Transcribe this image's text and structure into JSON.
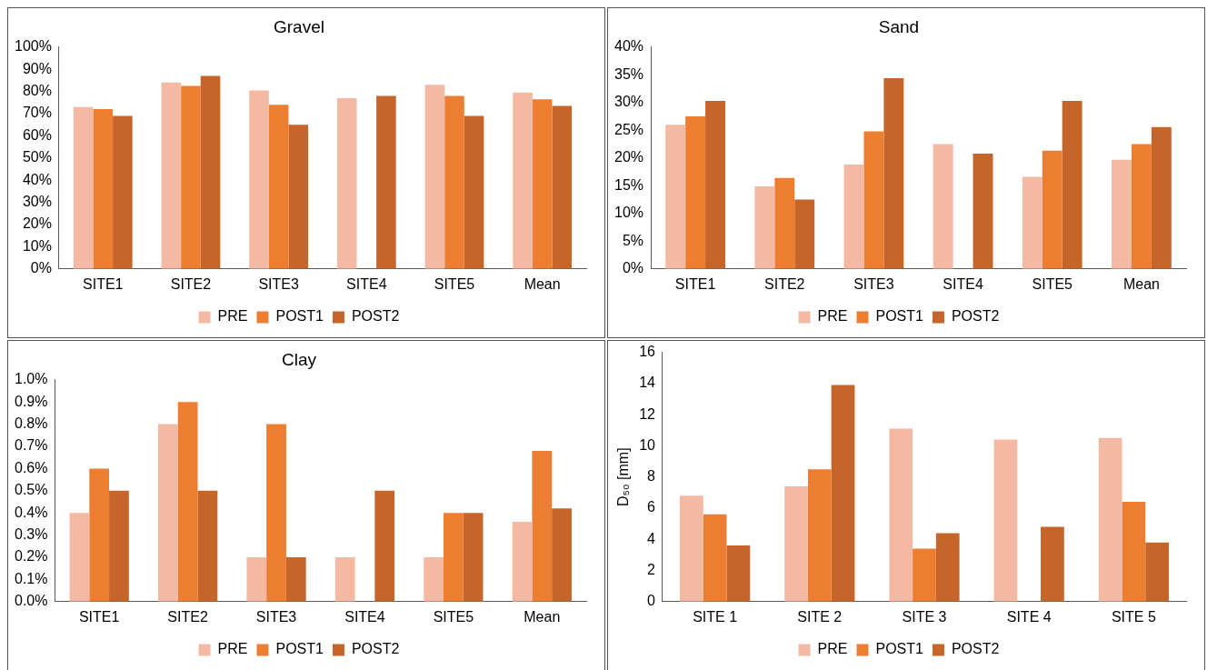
{
  "chart_data": [
    {
      "type": "bar",
      "title": "Gravel",
      "categories": [
        "SITE1",
        "SITE2",
        "SITE3",
        "SITE4",
        "SITE5",
        "Mean"
      ],
      "series": [
        {
          "name": "PRE",
          "color": "#f4b9a3",
          "values": [
            73,
            84,
            80.5,
            77,
            83,
            79.5
          ]
        },
        {
          "name": "POST1",
          "color": "#ed7d31",
          "values": [
            72,
            82.5,
            74,
            null,
            78,
            76.5
          ]
        },
        {
          "name": "POST2",
          "color": "#c5652a",
          "values": [
            69,
            87,
            65,
            78,
            69,
            73.5
          ]
        }
      ],
      "ylim": [
        0,
        100
      ],
      "yticks": [
        {
          "value": 0,
          "label": "0%"
        },
        {
          "value": 10,
          "label": "10%"
        },
        {
          "value": 20,
          "label": "20%"
        },
        {
          "value": 30,
          "label": "30%"
        },
        {
          "value": 40,
          "label": "40%"
        },
        {
          "value": 50,
          "label": "50%"
        },
        {
          "value": 60,
          "label": "60%"
        },
        {
          "value": 70,
          "label": "70%"
        },
        {
          "value": 80,
          "label": "80%"
        },
        {
          "value": 90,
          "label": "90%"
        },
        {
          "value": 100,
          "label": "100%"
        }
      ],
      "grid": false,
      "legend": "bottom"
    },
    {
      "type": "bar",
      "title": "Sand",
      "categories": [
        "SITE1",
        "SITE2",
        "SITE3",
        "SITE4",
        "SITE5",
        "Mean"
      ],
      "series": [
        {
          "name": "PRE",
          "color": "#f4b9a3",
          "values": [
            26,
            14.9,
            18.8,
            22.5,
            16.6,
            19.7
          ]
        },
        {
          "name": "POST1",
          "color": "#ed7d31",
          "values": [
            27.5,
            16.4,
            24.8,
            null,
            21.3,
            22.5
          ]
        },
        {
          "name": "POST2",
          "color": "#c5652a",
          "values": [
            30.3,
            12.5,
            34.4,
            20.8,
            30.3,
            25.6
          ]
        }
      ],
      "ylim": [
        0,
        40
      ],
      "yticks": [
        {
          "value": 0,
          "label": "0%"
        },
        {
          "value": 5,
          "label": "5%"
        },
        {
          "value": 10,
          "label": "10%"
        },
        {
          "value": 15,
          "label": "15%"
        },
        {
          "value": 20,
          "label": "20%"
        },
        {
          "value": 25,
          "label": "25%"
        },
        {
          "value": 30,
          "label": "30%"
        },
        {
          "value": 35,
          "label": "35%"
        },
        {
          "value": 40,
          "label": "40%"
        }
      ],
      "grid": false,
      "legend": "bottom"
    },
    {
      "type": "bar",
      "title": "Clay",
      "categories": [
        "SITE1",
        "SITE2",
        "SITE3",
        "SITE4",
        "SITE5",
        "Mean"
      ],
      "series": [
        {
          "name": "PRE",
          "color": "#f4b9a3",
          "values": [
            0.4,
            0.8,
            0.2,
            0.2,
            0.2,
            0.36
          ]
        },
        {
          "name": "POST1",
          "color": "#ed7d31",
          "values": [
            0.6,
            0.9,
            0.8,
            null,
            0.4,
            0.68
          ]
        },
        {
          "name": "POST2",
          "color": "#c5652a",
          "values": [
            0.5,
            0.5,
            0.2,
            0.5,
            0.4,
            0.42
          ]
        }
      ],
      "ylim": [
        0,
        1
      ],
      "yticks": [
        {
          "value": 0,
          "label": "0.0%"
        },
        {
          "value": 0.1,
          "label": "0.1%"
        },
        {
          "value": 0.2,
          "label": "0.2%"
        },
        {
          "value": 0.3,
          "label": "0.3%"
        },
        {
          "value": 0.4,
          "label": "0.4%"
        },
        {
          "value": 0.5,
          "label": "0.5%"
        },
        {
          "value": 0.6,
          "label": "0.6%"
        },
        {
          "value": 0.7,
          "label": "0.7%"
        },
        {
          "value": 0.8,
          "label": "0.8%"
        },
        {
          "value": 0.9,
          "label": "0.9%"
        },
        {
          "value": 1,
          "label": "1.0%"
        }
      ],
      "grid": false,
      "legend": "bottom"
    },
    {
      "type": "bar",
      "ylabel": "D₅₀ [mm]",
      "categories": [
        "SITE 1",
        "SITE 2",
        "SITE 3",
        "SITE 4",
        "SITE 5"
      ],
      "series": [
        {
          "name": "PRE",
          "color": "#f4b9a3",
          "values": [
            6.8,
            7.4,
            11.1,
            10.4,
            10.5
          ]
        },
        {
          "name": "POST1",
          "color": "#ed7d31",
          "values": [
            5.6,
            8.5,
            3.4,
            null,
            6.4
          ]
        },
        {
          "name": "POST2",
          "color": "#c5652a",
          "values": [
            3.6,
            13.9,
            4.4,
            4.8,
            3.8
          ]
        }
      ],
      "ylim": [
        0,
        16
      ],
      "yticks": [
        0,
        2,
        4,
        6,
        8,
        10,
        12,
        14,
        16
      ],
      "grid": false,
      "legend": "bottom"
    }
  ]
}
